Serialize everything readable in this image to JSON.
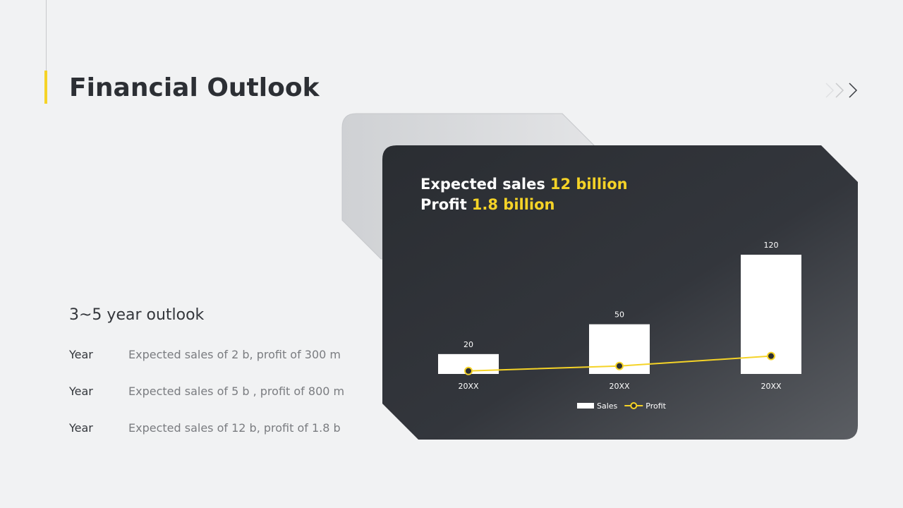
{
  "title": "Financial Outlook",
  "outlook": {
    "heading": "3~5 year outlook",
    "rows": [
      {
        "label": "Year",
        "text": "Expected sales of 2 b, profit of 300 m"
      },
      {
        "label": "Year",
        "text": "Expected sales of 5 b , profit of 800 m"
      },
      {
        "label": "Year",
        "text": "Expected sales of 12 b, profit of 1.8 b"
      }
    ]
  },
  "card": {
    "headline": [
      {
        "text": "Expected sales",
        "highlight": "12 billion"
      },
      {
        "text": "Profit",
        "highlight": "1.8 billion"
      }
    ]
  },
  "chart_data": {
    "type": "bar",
    "categories": [
      "20XX",
      "20XX",
      "20XX"
    ],
    "series": [
      {
        "name": "Sales",
        "type": "bar",
        "color": "#ffffff",
        "values": [
          20,
          50,
          120
        ]
      },
      {
        "name": "Profit",
        "type": "line",
        "color": "#f5d327",
        "values": [
          3,
          8,
          18
        ]
      }
    ],
    "ylim": [
      0,
      120
    ]
  }
}
